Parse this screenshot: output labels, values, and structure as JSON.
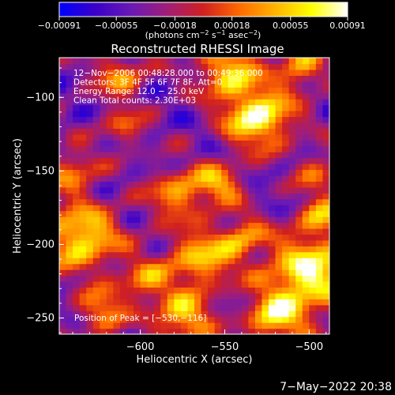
{
  "chart_data": {
    "type": "heatmap",
    "title": "Reconstructed RHESSI Image",
    "xlabel": "Heliocentric X (arcsec)",
    "ylabel": "Heliocentric Y (arcsec)",
    "xlim": [
      -648,
      -488
    ],
    "ylim": [
      -261,
      -73
    ],
    "x_ticks": [
      -600,
      -550,
      -500
    ],
    "x_tick_labels": [
      "−600",
      "−550",
      "−500"
    ],
    "y_ticks": [
      -100,
      -150,
      -200,
      -250
    ],
    "y_tick_labels": [
      "−100",
      "−150",
      "−200",
      "−250"
    ],
    "colorbar": {
      "min": -0.00091,
      "max": 0.00091,
      "ticks": [
        -0.00091,
        -0.00055,
        -0.00018,
        0.00018,
        0.00055,
        0.00091
      ],
      "tick_labels": [
        "−0.00091",
        "−0.00055",
        "−0.00018",
        "0.00018",
        "0.00055",
        "0.00091"
      ],
      "units_prefix": "(photons cm",
      "units_exp1": "−2",
      "units_mid1": " s",
      "units_exp2": "−1",
      "units_mid2": " asec",
      "units_exp3": "−2",
      "units_suffix": ")",
      "colors": [
        "#0000ff",
        "#3a00c8",
        "#6a1ab4",
        "#a01e78",
        "#d02020",
        "#ff6a00",
        "#ffb400",
        "#ffff00",
        "#ffffff"
      ]
    },
    "annotations": [
      "12−Nov−2006 00:48:28.000 to 00:49:36.000",
      "Detectors: 3F 4F 5F 6F 7F 8F, Att=0",
      "Energy Range: 12.0 − 25.0 keV",
      "Clean    Total counts: 2.30E+03"
    ],
    "peak_label": "Position of Peak = [−530,−116]",
    "peak": [
      -530,
      -116
    ],
    "hotspots": [
      {
        "x": -530,
        "y": -113,
        "intensity": 1.0,
        "radius": 14
      },
      {
        "x": -548,
        "y": -82,
        "intensity": 0.8,
        "radius": 12
      },
      {
        "x": -612,
        "y": -85,
        "intensity": 0.6,
        "radius": 10
      },
      {
        "x": -505,
        "y": -80,
        "intensity": 0.6,
        "radius": 10
      },
      {
        "x": -635,
        "y": -195,
        "intensity": 0.85,
        "radius": 16
      },
      {
        "x": -640,
        "y": -150,
        "intensity": 0.55,
        "radius": 10
      },
      {
        "x": -578,
        "y": -165,
        "intensity": 0.6,
        "radius": 12
      },
      {
        "x": -553,
        "y": -158,
        "intensity": 0.6,
        "radius": 10
      },
      {
        "x": -565,
        "y": -210,
        "intensity": 0.7,
        "radius": 14
      },
      {
        "x": -540,
        "y": -195,
        "intensity": 0.55,
        "radius": 10
      },
      {
        "x": -500,
        "y": -220,
        "intensity": 0.95,
        "radius": 18
      },
      {
        "x": -492,
        "y": -180,
        "intensity": 0.6,
        "radius": 10
      },
      {
        "x": -520,
        "y": -250,
        "intensity": 0.75,
        "radius": 12
      },
      {
        "x": -575,
        "y": -250,
        "intensity": 0.75,
        "radius": 12
      },
      {
        "x": -623,
        "y": -245,
        "intensity": 0.6,
        "radius": 10
      },
      {
        "x": -598,
        "y": -225,
        "intensity": 0.55,
        "radius": 10
      },
      {
        "x": -610,
        "y": -120,
        "intensity": 0.45,
        "radius": 9
      },
      {
        "x": -495,
        "y": -150,
        "intensity": 0.45,
        "radius": 9
      }
    ]
  },
  "footer": {
    "date_label": "7−May−2022 20:38"
  }
}
